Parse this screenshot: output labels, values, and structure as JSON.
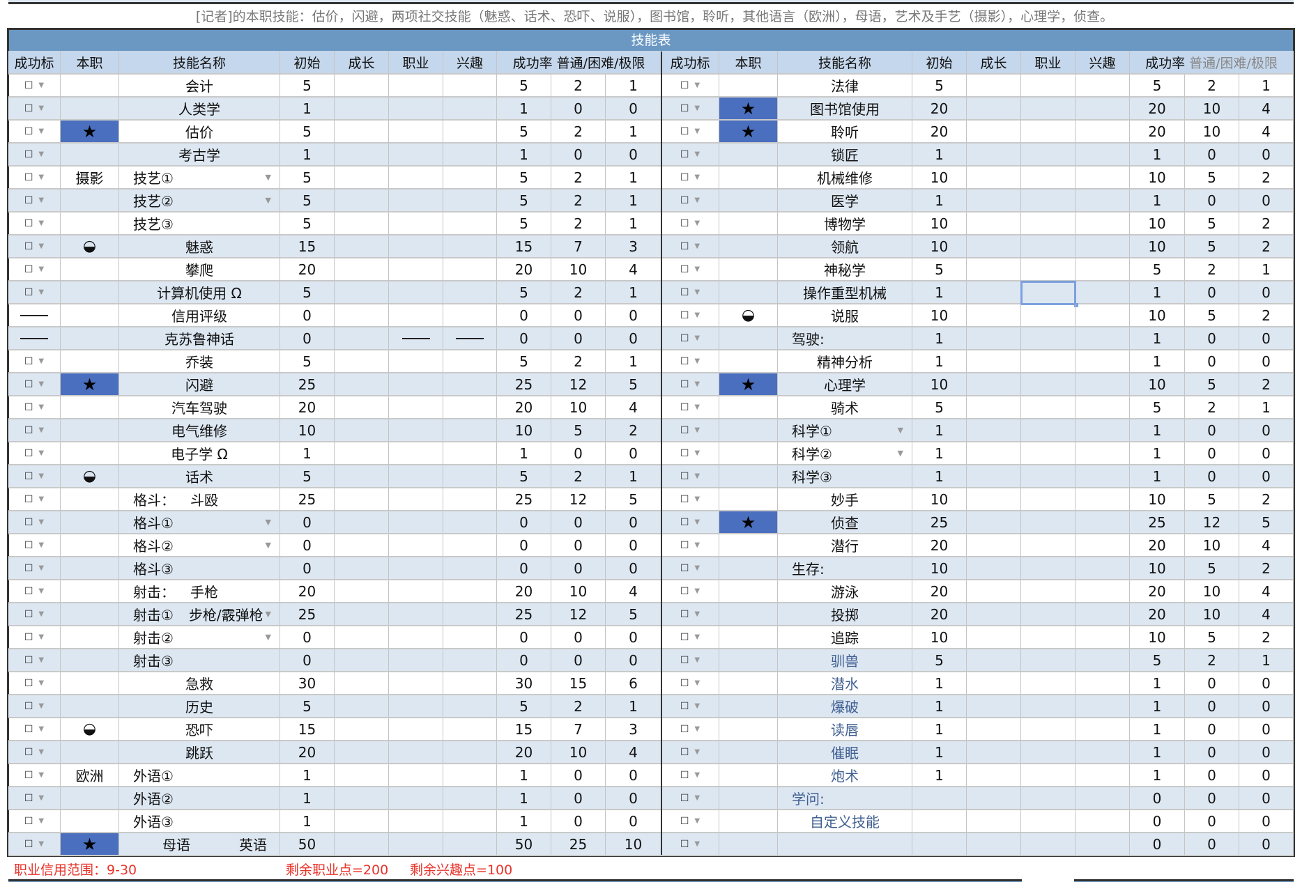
{
  "description": "[记者]的本职技能：估价，闪避，两项社交技能（魅惑、话术、恐吓、说服），图书馆，聆听，其他语言（欧洲），母语，艺术及手艺（摄影），心理学，侦查。",
  "title": "技能表",
  "headers": {
    "success_mark": "成功标",
    "occupation": "本职",
    "skill_name": "技能名称",
    "initial": "初始",
    "growth": "成长",
    "job": "职业",
    "interest": "兴趣",
    "success_rate": "成功率",
    "levels": "普通/困难/极限"
  },
  "colors": {
    "band": "#6b98c3",
    "header": "#c5d7ec",
    "row_alt": "#dde7f2",
    "occupation_star": "#4a6fbf",
    "link_text": "#3f5f91",
    "footer_text": "#e8332a"
  },
  "icons": {
    "checkbox": "checkbox-icon",
    "dropdown": "chevron-down-icon",
    "star": "star-icon",
    "yinyang": "yin-yang-icon"
  },
  "left": [
    {
      "mark": "checkbox",
      "occ": "",
      "name": "会计",
      "init": "5",
      "rate": [
        "5",
        "2",
        "1"
      ]
    },
    {
      "mark": "checkbox",
      "occ": "",
      "name": "人类学",
      "init": "1",
      "rate": [
        "1",
        "0",
        "0"
      ]
    },
    {
      "mark": "checkbox",
      "occ": "star",
      "name": "估价",
      "init": "5",
      "rate": [
        "5",
        "2",
        "1"
      ]
    },
    {
      "mark": "checkbox",
      "occ": "",
      "name": "考古学",
      "init": "1",
      "rate": [
        "1",
        "0",
        "0"
      ]
    },
    {
      "mark": "checkbox",
      "occ": "摄影",
      "name": "技艺①",
      "align": "left",
      "dropdown": true,
      "init": "5",
      "rate": [
        "5",
        "2",
        "1"
      ]
    },
    {
      "mark": "checkbox",
      "occ": "",
      "name": "技艺②",
      "align": "left",
      "dropdown": true,
      "init": "5",
      "rate": [
        "5",
        "2",
        "1"
      ]
    },
    {
      "mark": "checkbox",
      "occ": "",
      "name": "技艺③",
      "align": "left",
      "init": "5",
      "rate": [
        "5",
        "2",
        "1"
      ]
    },
    {
      "mark": "checkbox",
      "occ": "yinyang",
      "name": "魅惑",
      "init": "15",
      "rate": [
        "15",
        "7",
        "3"
      ]
    },
    {
      "mark": "checkbox",
      "occ": "",
      "name": "攀爬",
      "init": "20",
      "rate": [
        "20",
        "10",
        "4"
      ]
    },
    {
      "mark": "checkbox",
      "occ": "",
      "name": "计算机使用 Ω",
      "init": "5",
      "rate": [
        "5",
        "2",
        "1"
      ]
    },
    {
      "mark": "dash",
      "occ": "",
      "name": "信用评级",
      "init": "0",
      "rate": [
        "0",
        "0",
        "0"
      ]
    },
    {
      "mark": "dash",
      "occ": "",
      "name": "克苏鲁神话",
      "init": "0",
      "dashes": true,
      "rate": [
        "0",
        "0",
        "0"
      ]
    },
    {
      "mark": "checkbox",
      "occ": "",
      "name": "乔装",
      "init": "5",
      "rate": [
        "5",
        "2",
        "1"
      ]
    },
    {
      "mark": "checkbox",
      "occ": "star",
      "name": "闪避",
      "init": "25",
      "rate": [
        "25",
        "12",
        "5"
      ]
    },
    {
      "mark": "checkbox",
      "occ": "",
      "name": "汽车驾驶",
      "init": "20",
      "rate": [
        "20",
        "10",
        "4"
      ]
    },
    {
      "mark": "checkbox",
      "occ": "",
      "name": "电气维修",
      "init": "10",
      "rate": [
        "10",
        "5",
        "2"
      ]
    },
    {
      "mark": "checkbox",
      "occ": "",
      "name": "电子学 Ω",
      "init": "1",
      "rate": [
        "1",
        "0",
        "0"
      ]
    },
    {
      "mark": "checkbox",
      "occ": "yinyang",
      "name": "话术",
      "init": "5",
      "rate": [
        "5",
        "2",
        "1"
      ]
    },
    {
      "mark": "checkbox",
      "occ": "",
      "name": "格斗：",
      "name2": "斗殴",
      "align": "left",
      "init": "25",
      "rate": [
        "25",
        "12",
        "5"
      ]
    },
    {
      "mark": "checkbox",
      "occ": "",
      "name": "格斗①",
      "align": "left",
      "dropdown": true,
      "init": "0",
      "rate": [
        "0",
        "0",
        "0"
      ]
    },
    {
      "mark": "checkbox",
      "occ": "",
      "name": "格斗②",
      "align": "left",
      "dropdown": true,
      "init": "0",
      "rate": [
        "0",
        "0",
        "0"
      ]
    },
    {
      "mark": "checkbox",
      "occ": "",
      "name": "格斗③",
      "align": "left",
      "init": "0",
      "rate": [
        "0",
        "0",
        "0"
      ]
    },
    {
      "mark": "checkbox",
      "occ": "",
      "name": "射击：",
      "name2": "手枪",
      "align": "left",
      "init": "20",
      "rate": [
        "20",
        "10",
        "4"
      ]
    },
    {
      "mark": "checkbox",
      "occ": "",
      "name": "射击①",
      "name2": "步枪/霰弹枪",
      "align": "left",
      "dropdown": true,
      "init": "25",
      "rate": [
        "25",
        "12",
        "5"
      ]
    },
    {
      "mark": "checkbox",
      "occ": "",
      "name": "射击②",
      "align": "left",
      "dropdown": true,
      "init": "0",
      "rate": [
        "0",
        "0",
        "0"
      ]
    },
    {
      "mark": "checkbox",
      "occ": "",
      "name": "射击③",
      "align": "left",
      "init": "0",
      "rate": [
        "0",
        "0",
        "0"
      ]
    },
    {
      "mark": "checkbox",
      "occ": "",
      "name": "急救",
      "init": "30",
      "rate": [
        "30",
        "15",
        "6"
      ]
    },
    {
      "mark": "checkbox",
      "occ": "",
      "name": "历史",
      "init": "5",
      "rate": [
        "5",
        "2",
        "1"
      ]
    },
    {
      "mark": "checkbox",
      "occ": "yinyang",
      "name": "恐吓",
      "init": "15",
      "rate": [
        "15",
        "7",
        "3"
      ]
    },
    {
      "mark": "checkbox",
      "occ": "",
      "name": "跳跃",
      "init": "20",
      "rate": [
        "20",
        "10",
        "4"
      ]
    },
    {
      "mark": "checkbox",
      "occ": "欧洲",
      "name": "外语①",
      "align": "left",
      "init": "1",
      "rate": [
        "1",
        "0",
        "0"
      ]
    },
    {
      "mark": "checkbox",
      "occ": "",
      "name": "外语②",
      "align": "left",
      "init": "1",
      "rate": [
        "1",
        "0",
        "0"
      ]
    },
    {
      "mark": "checkbox",
      "occ": "",
      "name": "外语③",
      "align": "left",
      "init": "1",
      "rate": [
        "1",
        "0",
        "0"
      ]
    },
    {
      "mark": "checkbox",
      "occ": "star",
      "name": "母语",
      "name2": "英语",
      "align": "left",
      "init": "50",
      "rate": [
        "50",
        "25",
        "10"
      ]
    }
  ],
  "right": [
    {
      "mark": "checkbox",
      "occ": "",
      "name": "法律",
      "init": "5",
      "rate": [
        "5",
        "2",
        "1"
      ]
    },
    {
      "mark": "checkbox",
      "occ": "star",
      "name": "图书馆使用",
      "init": "20",
      "rate": [
        "20",
        "10",
        "4"
      ]
    },
    {
      "mark": "checkbox",
      "occ": "star",
      "name": "聆听",
      "init": "20",
      "rate": [
        "20",
        "10",
        "4"
      ]
    },
    {
      "mark": "checkbox",
      "occ": "",
      "name": "锁匠",
      "init": "1",
      "rate": [
        "1",
        "0",
        "0"
      ]
    },
    {
      "mark": "checkbox",
      "occ": "",
      "name": "机械维修",
      "init": "10",
      "rate": [
        "10",
        "5",
        "2"
      ]
    },
    {
      "mark": "checkbox",
      "occ": "",
      "name": "医学",
      "init": "1",
      "rate": [
        "1",
        "0",
        "0"
      ]
    },
    {
      "mark": "checkbox",
      "occ": "",
      "name": "博物学",
      "init": "10",
      "rate": [
        "10",
        "5",
        "2"
      ]
    },
    {
      "mark": "checkbox",
      "occ": "",
      "name": "领航",
      "init": "10",
      "rate": [
        "10",
        "5",
        "2"
      ]
    },
    {
      "mark": "checkbox",
      "occ": "",
      "name": "神秘学",
      "init": "5",
      "rate": [
        "5",
        "2",
        "1"
      ]
    },
    {
      "mark": "checkbox",
      "occ": "",
      "name": "操作重型机械",
      "init": "1",
      "rate": [
        "1",
        "0",
        "0"
      ],
      "selected": true
    },
    {
      "mark": "checkbox",
      "occ": "yinyang",
      "name": "说服",
      "init": "10",
      "rate": [
        "10",
        "5",
        "2"
      ]
    },
    {
      "mark": "checkbox",
      "occ": "",
      "name": "驾驶:",
      "align": "left",
      "init": "1",
      "rate": [
        "1",
        "0",
        "0"
      ]
    },
    {
      "mark": "checkbox",
      "occ": "",
      "name": "精神分析",
      "init": "1",
      "rate": [
        "1",
        "0",
        "0"
      ]
    },
    {
      "mark": "checkbox",
      "occ": "star",
      "name": "心理学",
      "init": "10",
      "rate": [
        "10",
        "5",
        "2"
      ]
    },
    {
      "mark": "checkbox",
      "occ": "",
      "name": "骑术",
      "init": "5",
      "rate": [
        "5",
        "2",
        "1"
      ]
    },
    {
      "mark": "checkbox",
      "occ": "",
      "name": "科学①",
      "align": "left",
      "dropdown": true,
      "init": "1",
      "rate": [
        "1",
        "0",
        "0"
      ]
    },
    {
      "mark": "checkbox",
      "occ": "",
      "name": "科学②",
      "align": "left",
      "dropdown": true,
      "init": "1",
      "rate": [
        "1",
        "0",
        "0"
      ]
    },
    {
      "mark": "checkbox",
      "occ": "",
      "name": "科学③",
      "align": "left",
      "init": "1",
      "rate": [
        "1",
        "0",
        "0"
      ]
    },
    {
      "mark": "checkbox",
      "occ": "",
      "name": "妙手",
      "init": "10",
      "rate": [
        "10",
        "5",
        "2"
      ]
    },
    {
      "mark": "checkbox",
      "occ": "star",
      "name": "侦查",
      "init": "25",
      "rate": [
        "25",
        "12",
        "5"
      ]
    },
    {
      "mark": "checkbox",
      "occ": "",
      "name": "潜行",
      "init": "20",
      "rate": [
        "20",
        "10",
        "4"
      ]
    },
    {
      "mark": "checkbox",
      "occ": "",
      "name": "生存:",
      "align": "left",
      "init": "10",
      "rate": [
        "10",
        "5",
        "2"
      ]
    },
    {
      "mark": "checkbox",
      "occ": "",
      "name": "游泳",
      "init": "20",
      "rate": [
        "20",
        "10",
        "4"
      ]
    },
    {
      "mark": "checkbox",
      "occ": "",
      "name": "投掷",
      "init": "20",
      "rate": [
        "20",
        "10",
        "4"
      ]
    },
    {
      "mark": "checkbox",
      "occ": "",
      "name": "追踪",
      "init": "10",
      "rate": [
        "10",
        "5",
        "2"
      ]
    },
    {
      "mark": "checkbox",
      "occ": "",
      "name": "驯兽",
      "blue": true,
      "init": "5",
      "rate": [
        "5",
        "2",
        "1"
      ]
    },
    {
      "mark": "checkbox",
      "occ": "",
      "name": "潜水",
      "blue": true,
      "init": "1",
      "rate": [
        "1",
        "0",
        "0"
      ]
    },
    {
      "mark": "checkbox",
      "occ": "",
      "name": "爆破",
      "blue": true,
      "init": "1",
      "rate": [
        "1",
        "0",
        "0"
      ]
    },
    {
      "mark": "checkbox",
      "occ": "",
      "name": "读唇",
      "blue": true,
      "init": "1",
      "rate": [
        "1",
        "0",
        "0"
      ]
    },
    {
      "mark": "checkbox",
      "occ": "",
      "name": "催眠",
      "blue": true,
      "init": "1",
      "rate": [
        "1",
        "0",
        "0"
      ]
    },
    {
      "mark": "checkbox",
      "occ": "",
      "name": "炮术",
      "blue": true,
      "init": "1",
      "rate": [
        "1",
        "0",
        "0"
      ]
    },
    {
      "mark": "checkbox",
      "occ": "",
      "name": "学问:",
      "blue": true,
      "align": "left",
      "init": "",
      "rate": [
        "0",
        "0",
        "0"
      ]
    },
    {
      "mark": "checkbox",
      "occ": "",
      "name": "自定义技能",
      "blue": true,
      "init": "",
      "rate": [
        "0",
        "0",
        "0"
      ]
    },
    {
      "mark": "checkbox",
      "occ": "",
      "name": "",
      "init": "",
      "rate": [
        "0",
        "0",
        "0"
      ]
    }
  ],
  "footer": {
    "credit_range": "职业信用范围：9-30",
    "remaining_job_points": "剩余职业点=200",
    "remaining_interest_points": "剩余兴趣点=100"
  }
}
